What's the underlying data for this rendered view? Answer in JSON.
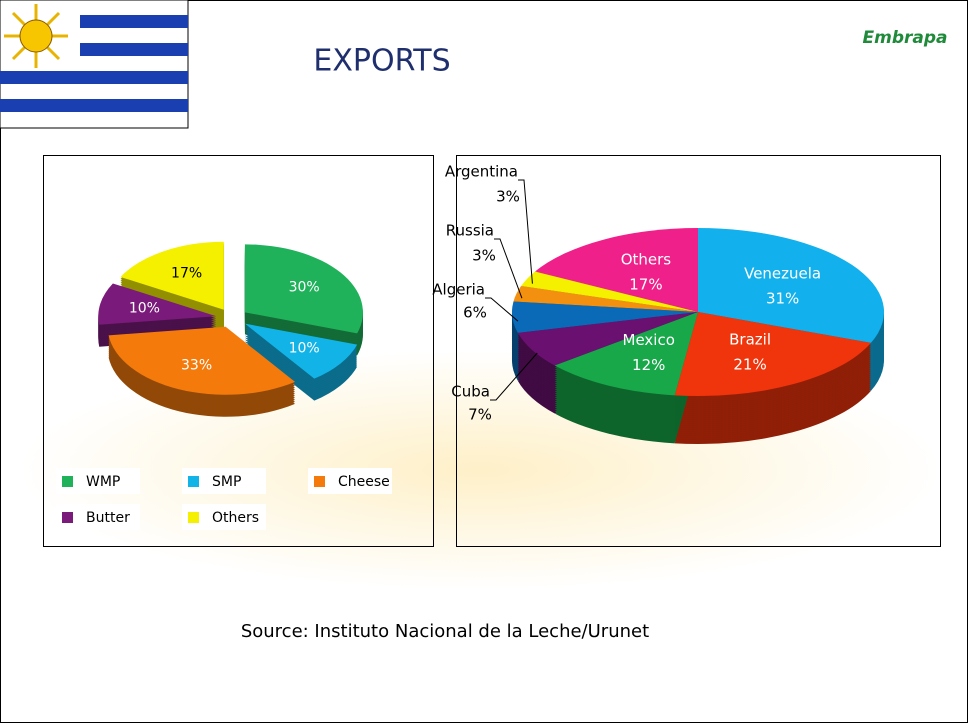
{
  "title": "EXPORTS",
  "logo": "Embrapa",
  "source": "Source: Instituto Nacional de la Leche/Urunet",
  "chart_data": [
    {
      "type": "pie",
      "categories": [
        "WMP",
        "SMP",
        "Cheese",
        "Butter",
        "Others"
      ],
      "values": [
        30,
        10,
        33,
        10,
        17
      ],
      "value_labels": [
        "30%",
        "10%",
        "33%",
        "10%",
        "17%"
      ],
      "colors": [
        "#1fb25a",
        "#12b4e8",
        "#f47a0c",
        "#7a1a7a",
        "#f4f000"
      ],
      "legend": "bottom"
    },
    {
      "type": "pie",
      "categories": [
        "Venezuela",
        "Brazil",
        "Mexico",
        "Cuba",
        "Algeria",
        "Russia",
        "Argentina",
        "Others"
      ],
      "values": [
        31,
        21,
        12,
        7,
        6,
        3,
        3,
        17
      ],
      "value_labels": [
        "31%",
        "21%",
        "12%",
        "7%",
        "6%",
        "3%",
        "3%",
        "17%"
      ],
      "colors": [
        "#12b0ec",
        "#f0340c",
        "#18a84a",
        "#6a1070",
        "#0a6ab8",
        "#f49010",
        "#f4f000",
        "#f0208a"
      ]
    }
  ]
}
